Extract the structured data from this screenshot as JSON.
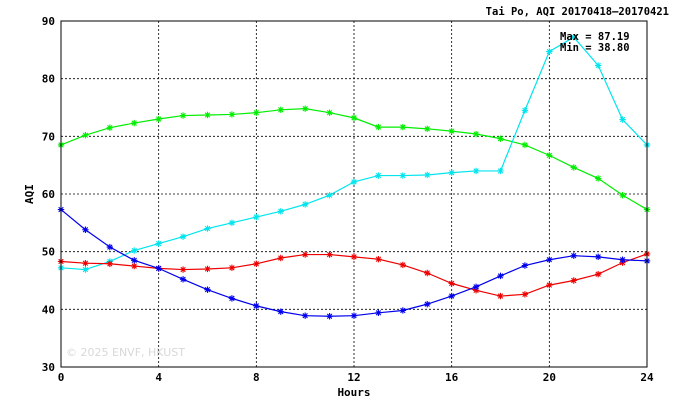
{
  "chart_data": {
    "type": "line",
    "title": "Tai Po, AQI 20170418–20170421",
    "xlabel": "Hours",
    "ylabel": "AQI",
    "xlim": [
      0,
      24
    ],
    "ylim": [
      30,
      90
    ],
    "xticks": [
      0,
      4,
      8,
      12,
      16,
      20,
      24
    ],
    "yticks": [
      30,
      40,
      50,
      60,
      70,
      80,
      90
    ],
    "grid": true,
    "x": [
      0,
      1,
      2,
      3,
      4,
      5,
      6,
      7,
      8,
      9,
      10,
      11,
      12,
      13,
      14,
      15,
      16,
      17,
      18,
      19,
      20,
      21,
      22,
      23,
      24
    ],
    "series": [
      {
        "color": "#00ee00",
        "values": [
          68.5,
          70.2,
          71.5,
          72.3,
          73.0,
          73.6,
          73.7,
          73.8,
          74.1,
          74.6,
          74.8,
          74.1,
          73.2,
          71.6,
          71.6,
          71.3,
          70.9,
          70.4,
          69.6,
          68.5,
          66.7,
          64.6,
          62.7,
          59.8,
          57.3
        ]
      },
      {
        "color": "#00e5ee",
        "values": [
          47.2,
          46.9,
          48.3,
          50.2,
          51.4,
          52.6,
          54.0,
          55.0,
          56.0,
          57.0,
          58.2,
          59.8,
          62.1,
          63.2,
          63.2,
          63.3,
          63.7,
          64.0,
          64.0,
          74.5,
          84.7,
          87.19,
          82.3,
          72.9,
          68.5
        ]
      },
      {
        "color": "#ee0000",
        "values": [
          48.3,
          48.0,
          47.9,
          47.5,
          47.1,
          46.9,
          47.0,
          47.2,
          47.9,
          48.9,
          49.5,
          49.5,
          49.1,
          48.7,
          47.7,
          46.3,
          44.5,
          43.3,
          42.3,
          42.6,
          44.2,
          45.0,
          46.1,
          48.1,
          49.6
        ]
      },
      {
        "color": "#0000ee",
        "values": [
          57.3,
          53.8,
          50.8,
          48.5,
          47.1,
          45.2,
          43.4,
          41.9,
          40.6,
          39.6,
          38.9,
          38.8,
          38.9,
          39.4,
          39.8,
          40.9,
          42.3,
          43.9,
          45.8,
          47.6,
          48.6,
          49.3,
          49.1,
          48.6,
          48.4
        ]
      }
    ],
    "annotations": {
      "max_label": "Max = 87.19",
      "min_label": "Min = 38.80"
    },
    "watermark": "© 2025  ENVF, HKUST"
  }
}
